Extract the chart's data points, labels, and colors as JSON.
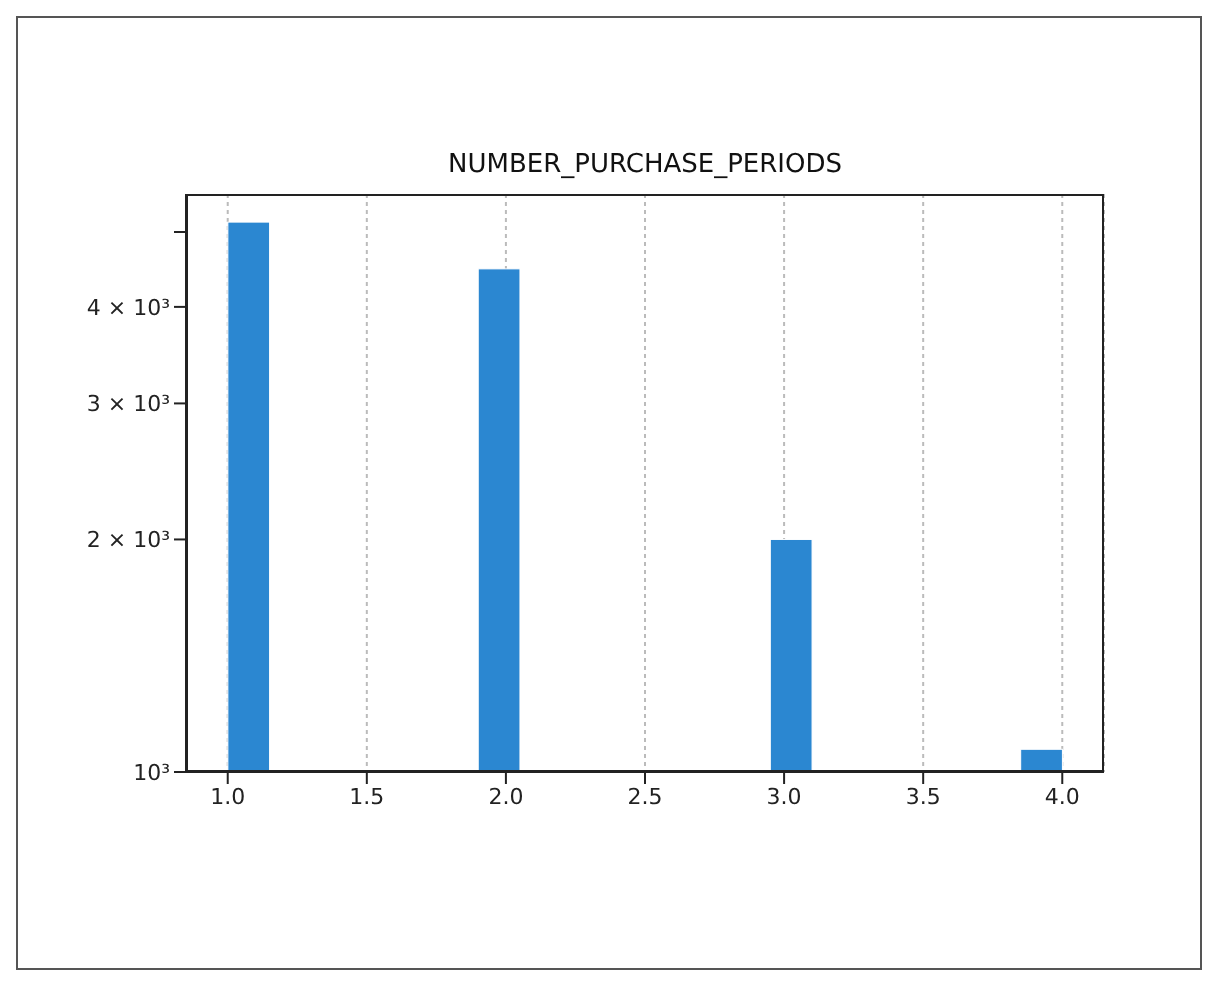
{
  "chart_data": {
    "type": "histogram",
    "title": "NUMBER_PURCHASE_PERIODS",
    "bins": [
      1.0,
      1.15,
      1.3,
      1.45,
      1.6,
      1.75,
      1.9,
      2.05,
      2.2,
      2.35,
      2.5,
      2.65,
      2.8,
      2.95,
      3.1,
      3.25,
      3.4,
      3.55,
      3.7,
      3.85,
      4.0
    ],
    "values": [
      5150,
      null,
      null,
      null,
      null,
      null,
      4480,
      null,
      null,
      null,
      null,
      null,
      null,
      2000,
      null,
      null,
      null,
      null,
      null,
      1070
    ],
    "color": "#2b87d1",
    "xlim": [
      0.85,
      4.15
    ],
    "xticks": [
      {
        "value": 1.0,
        "label": "1.0"
      },
      {
        "value": 1.5,
        "label": "1.5"
      },
      {
        "value": 2.0,
        "label": "2.0"
      },
      {
        "value": 2.5,
        "label": "2.5"
      },
      {
        "value": 3.0,
        "label": "3.0"
      },
      {
        "value": 3.5,
        "label": "3.5"
      },
      {
        "value": 4.0,
        "label": "4.0"
      }
    ],
    "ylim": [
      1000,
      5600
    ],
    "yticks": [
      {
        "value": 1000,
        "label": "10³"
      },
      {
        "value": 2000,
        "label": "2 × 10³"
      },
      {
        "value": 3000,
        "label": "3 × 10³"
      },
      {
        "value": 4000,
        "label": "4 × 10³"
      },
      {
        "value": 5000,
        "label": null
      }
    ],
    "log": true,
    "grid": "x"
  }
}
